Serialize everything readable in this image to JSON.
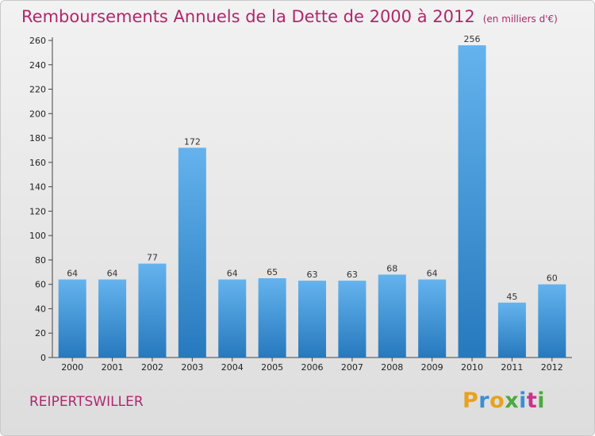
{
  "title": "Remboursements Annuels de la Dette de 2000 à 2012",
  "unit_note": "(en milliers d'€)",
  "town": "REIPERTSWILLER",
  "logo": {
    "text": "Proxiti",
    "letters": [
      "P",
      "r",
      "o",
      "x",
      "i",
      "t",
      "i"
    ],
    "colors": [
      "#e8a21c",
      "#3a8fd6",
      "#e8a21c",
      "#4caa3e",
      "#3a8fd6",
      "#c9338a",
      "#4caa3e"
    ]
  },
  "colors": {
    "bar_light": "#64b3ee",
    "bar_dark": "#2679bd",
    "title": "#b0276b"
  },
  "chart_data": {
    "type": "bar",
    "title": "Remboursements Annuels de la Dette de 2000 à 2012",
    "categories": [
      "2000",
      "2001",
      "2002",
      "2003",
      "2004",
      "2005",
      "2006",
      "2007",
      "2008",
      "2009",
      "2010",
      "2011",
      "2012"
    ],
    "values": [
      64,
      64,
      77,
      172,
      64,
      65,
      63,
      63,
      68,
      64,
      256,
      45,
      60
    ],
    "ylim": [
      0,
      260
    ],
    "yticks": [
      0,
      20,
      40,
      60,
      80,
      100,
      120,
      140,
      160,
      180,
      200,
      220,
      240,
      260
    ],
    "grid": false,
    "xlabel": "",
    "ylabel": ""
  }
}
